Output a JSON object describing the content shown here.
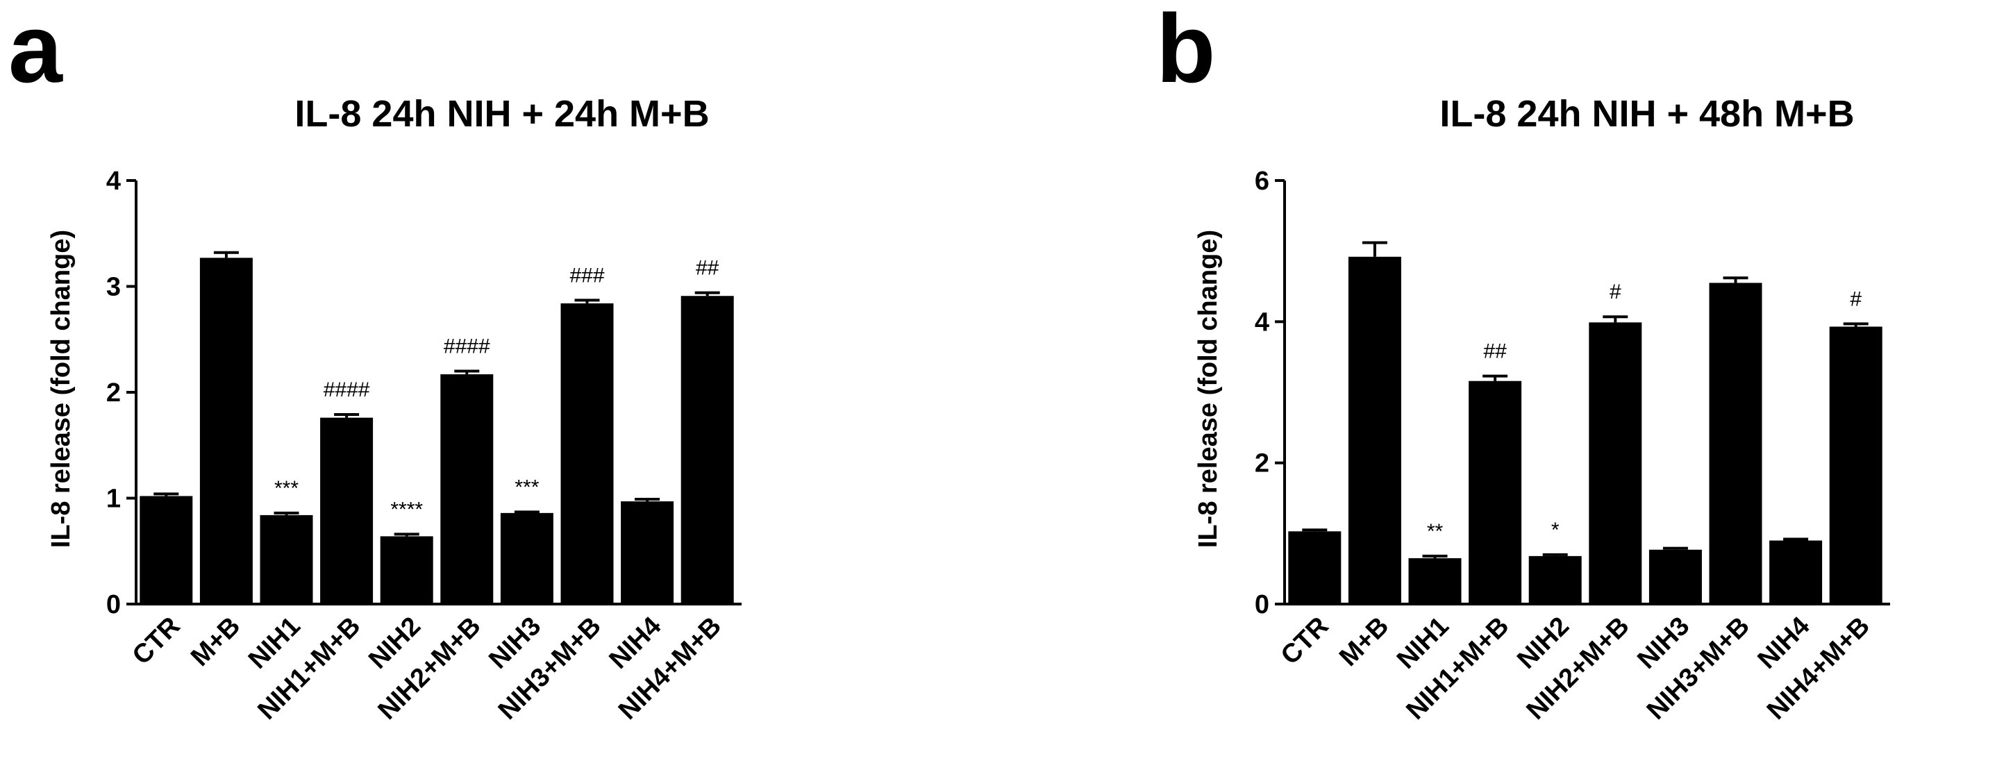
{
  "panels": [
    {
      "letter": "a"
    },
    {
      "letter": "b"
    }
  ],
  "chart_data": [
    {
      "type": "bar",
      "title": "IL-8 24h NIH + 24h M+B",
      "xlabel": "",
      "ylabel": "IL-8 release (fold change)",
      "ylim": [
        0,
        4
      ],
      "yticks": [
        0,
        1,
        2,
        3,
        4
      ],
      "grid": false,
      "categories": [
        "CTR",
        "M+B",
        "NIH1",
        "NIH1+M+B",
        "NIH2",
        "NIH2+M+B",
        "NIH3",
        "NIH3+M+B",
        "NIH4",
        "NIH4+M+B"
      ],
      "values": [
        1.02,
        3.27,
        0.84,
        1.76,
        0.64,
        2.17,
        0.86,
        2.84,
        0.97,
        2.91
      ],
      "errors": [
        0.02,
        0.05,
        0.02,
        0.03,
        0.02,
        0.03,
        0.01,
        0.03,
        0.02,
        0.03
      ],
      "annotations": [
        "",
        "",
        "***",
        "####",
        "****",
        "####",
        "***",
        "###",
        "",
        "##"
      ],
      "color": "#000000"
    },
    {
      "type": "bar",
      "title": "IL-8 24h NIH + 48h M+B",
      "xlabel": "",
      "ylabel": "IL-8 release (fold change)",
      "ylim": [
        0,
        6
      ],
      "yticks": [
        0,
        2,
        4,
        6
      ],
      "grid": false,
      "categories": [
        "CTR",
        "M+B",
        "NIH1",
        "NIH1+M+B",
        "NIH2",
        "NIH2+M+B",
        "NIH3",
        "NIH3+M+B",
        "NIH4",
        "NIH4+M+B"
      ],
      "values": [
        1.03,
        4.92,
        0.65,
        3.16,
        0.68,
        3.99,
        0.77,
        4.55,
        0.9,
        3.93
      ],
      "errors": [
        0.02,
        0.2,
        0.03,
        0.07,
        0.02,
        0.08,
        0.02,
        0.07,
        0.02,
        0.04
      ],
      "annotations": [
        "",
        "",
        "**",
        "##",
        "*",
        "#",
        "",
        "",
        "",
        "#"
      ],
      "color": "#000000"
    }
  ]
}
